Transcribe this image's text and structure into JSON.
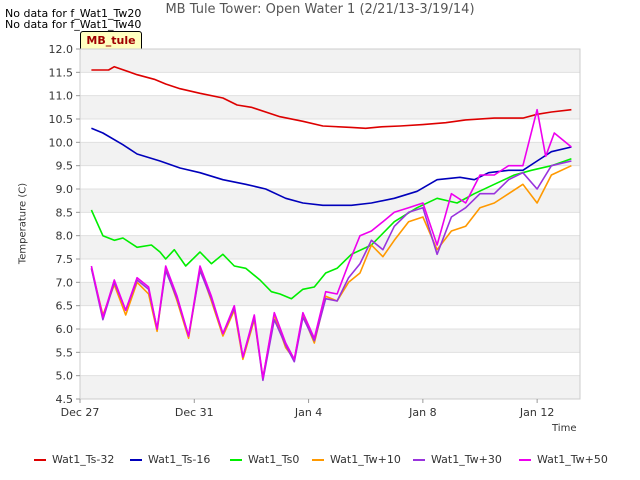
{
  "nodata": [
    "No data for f_Wat1_Tw20",
    "No data for f_Wat1_Tw40"
  ],
  "badge": "MB_tule",
  "chart_data": {
    "type": "line",
    "title": "MB Tule Tower: Open Water 1 (2/21/13-3/19/14)",
    "xlabel": "Time",
    "ylabel": "Temperature (C)",
    "ylim": [
      4.5,
      12.0
    ],
    "yticks": [
      "4.5",
      "5.0",
      "5.5",
      "6.0",
      "6.5",
      "7.0",
      "7.5",
      "8.0",
      "8.5",
      "9.0",
      "9.5",
      "10.0",
      "10.5",
      "11.0",
      "11.5",
      "12.0"
    ],
    "xlim_days": [
      0,
      17.5
    ],
    "xticks": [
      {
        "label": "Dec 27",
        "day": 0
      },
      {
        "label": "Dec 31",
        "day": 4
      },
      {
        "label": "Jan 4",
        "day": 8
      },
      {
        "label": "Jan 8",
        "day": 12
      },
      {
        "label": "Jan 12",
        "day": 16
      }
    ],
    "grid": true,
    "legend_position": "bottom",
    "series": [
      {
        "name": "Wat1_Ts-32",
        "color": "#dd0000",
        "points": [
          [
            0.4,
            11.55
          ],
          [
            1.0,
            11.55
          ],
          [
            1.2,
            11.62
          ],
          [
            2.0,
            11.45
          ],
          [
            2.6,
            11.35
          ],
          [
            3.0,
            11.25
          ],
          [
            3.5,
            11.15
          ],
          [
            4.2,
            11.05
          ],
          [
            5.0,
            10.95
          ],
          [
            5.5,
            10.8
          ],
          [
            6.0,
            10.75
          ],
          [
            7.0,
            10.55
          ],
          [
            7.8,
            10.45
          ],
          [
            8.5,
            10.35
          ],
          [
            9.5,
            10.32
          ],
          [
            10.0,
            10.3
          ],
          [
            10.5,
            10.33
          ],
          [
            11.2,
            10.35
          ],
          [
            12.0,
            10.38
          ],
          [
            12.8,
            10.42
          ],
          [
            13.5,
            10.48
          ],
          [
            14.5,
            10.52
          ],
          [
            15.5,
            10.52
          ],
          [
            16.0,
            10.6
          ],
          [
            16.5,
            10.65
          ],
          [
            17.2,
            10.7
          ]
        ]
      },
      {
        "name": "Wat1_Ts-16",
        "color": "#0000bb",
        "points": [
          [
            0.4,
            10.3
          ],
          [
            0.8,
            10.2
          ],
          [
            1.5,
            9.95
          ],
          [
            2.0,
            9.75
          ],
          [
            2.8,
            9.6
          ],
          [
            3.5,
            9.45
          ],
          [
            4.2,
            9.35
          ],
          [
            5.0,
            9.2
          ],
          [
            5.8,
            9.1
          ],
          [
            6.5,
            9.0
          ],
          [
            7.2,
            8.8
          ],
          [
            7.8,
            8.7
          ],
          [
            8.5,
            8.65
          ],
          [
            9.5,
            8.65
          ],
          [
            10.2,
            8.7
          ],
          [
            11.0,
            8.8
          ],
          [
            11.8,
            8.95
          ],
          [
            12.5,
            9.2
          ],
          [
            13.3,
            9.25
          ],
          [
            13.8,
            9.2
          ],
          [
            14.3,
            9.35
          ],
          [
            15.0,
            9.4
          ],
          [
            15.5,
            9.4
          ],
          [
            16.0,
            9.6
          ],
          [
            16.5,
            9.8
          ],
          [
            17.2,
            9.9
          ]
        ]
      },
      {
        "name": "Wat1_Ts0",
        "color": "#00ee00",
        "points": [
          [
            0.4,
            8.55
          ],
          [
            0.8,
            8.0
          ],
          [
            1.2,
            7.9
          ],
          [
            1.5,
            7.95
          ],
          [
            2.0,
            7.75
          ],
          [
            2.5,
            7.8
          ],
          [
            2.8,
            7.65
          ],
          [
            3.0,
            7.5
          ],
          [
            3.3,
            7.7
          ],
          [
            3.7,
            7.35
          ],
          [
            4.2,
            7.65
          ],
          [
            4.6,
            7.4
          ],
          [
            5.0,
            7.6
          ],
          [
            5.4,
            7.35
          ],
          [
            5.8,
            7.3
          ],
          [
            6.3,
            7.05
          ],
          [
            6.7,
            6.8
          ],
          [
            7.0,
            6.75
          ],
          [
            7.4,
            6.65
          ],
          [
            7.8,
            6.85
          ],
          [
            8.2,
            6.9
          ],
          [
            8.6,
            7.2
          ],
          [
            9.0,
            7.3
          ],
          [
            9.5,
            7.6
          ],
          [
            10.2,
            7.8
          ],
          [
            11.0,
            8.3
          ],
          [
            11.8,
            8.6
          ],
          [
            12.5,
            8.8
          ],
          [
            13.2,
            8.7
          ],
          [
            13.8,
            8.9
          ],
          [
            14.5,
            9.1
          ],
          [
            15.2,
            9.3
          ],
          [
            15.8,
            9.4
          ],
          [
            16.5,
            9.5
          ],
          [
            17.2,
            9.65
          ]
        ]
      },
      {
        "name": "Wat1_Tw+10",
        "color": "#ff9900",
        "points": [
          [
            0.4,
            7.3
          ],
          [
            0.8,
            6.3
          ],
          [
            1.2,
            6.95
          ],
          [
            1.6,
            6.3
          ],
          [
            2.0,
            7.0
          ],
          [
            2.4,
            6.75
          ],
          [
            2.7,
            5.95
          ],
          [
            3.0,
            7.3
          ],
          [
            3.4,
            6.6
          ],
          [
            3.8,
            5.8
          ],
          [
            4.2,
            7.3
          ],
          [
            4.6,
            6.6
          ],
          [
            5.0,
            5.85
          ],
          [
            5.4,
            6.4
          ],
          [
            5.7,
            5.35
          ],
          [
            6.1,
            6.2
          ],
          [
            6.4,
            4.95
          ],
          [
            6.8,
            6.3
          ],
          [
            7.2,
            5.6
          ],
          [
            7.5,
            5.35
          ],
          [
            7.8,
            6.3
          ],
          [
            8.2,
            5.7
          ],
          [
            8.6,
            6.7
          ],
          [
            9.0,
            6.6
          ],
          [
            9.4,
            7.0
          ],
          [
            9.8,
            7.2
          ],
          [
            10.2,
            7.8
          ],
          [
            10.6,
            7.55
          ],
          [
            11.0,
            7.9
          ],
          [
            11.5,
            8.3
          ],
          [
            12.0,
            8.4
          ],
          [
            12.5,
            7.7
          ],
          [
            13.0,
            8.1
          ],
          [
            13.5,
            8.2
          ],
          [
            14.0,
            8.6
          ],
          [
            14.5,
            8.7
          ],
          [
            15.0,
            8.9
          ],
          [
            15.5,
            9.1
          ],
          [
            16.0,
            8.7
          ],
          [
            16.5,
            9.3
          ],
          [
            17.2,
            9.5
          ]
        ]
      },
      {
        "name": "Wat1_Tw+30",
        "color": "#9933dd",
        "points": [
          [
            0.4,
            7.3
          ],
          [
            0.8,
            6.2
          ],
          [
            1.2,
            7.0
          ],
          [
            1.6,
            6.4
          ],
          [
            2.0,
            7.05
          ],
          [
            2.4,
            6.85
          ],
          [
            2.7,
            6.0
          ],
          [
            3.0,
            7.25
          ],
          [
            3.4,
            6.65
          ],
          [
            3.8,
            5.85
          ],
          [
            4.2,
            7.25
          ],
          [
            4.6,
            6.65
          ],
          [
            5.0,
            5.9
          ],
          [
            5.4,
            6.45
          ],
          [
            5.7,
            5.4
          ],
          [
            6.1,
            6.25
          ],
          [
            6.4,
            4.9
          ],
          [
            6.8,
            6.2
          ],
          [
            7.2,
            5.65
          ],
          [
            7.5,
            5.3
          ],
          [
            7.8,
            6.25
          ],
          [
            8.2,
            5.75
          ],
          [
            8.6,
            6.65
          ],
          [
            9.0,
            6.6
          ],
          [
            9.4,
            7.1
          ],
          [
            9.8,
            7.4
          ],
          [
            10.2,
            7.9
          ],
          [
            10.6,
            7.7
          ],
          [
            11.0,
            8.2
          ],
          [
            11.5,
            8.5
          ],
          [
            12.0,
            8.6
          ],
          [
            12.5,
            7.6
          ],
          [
            13.0,
            8.4
          ],
          [
            13.5,
            8.6
          ],
          [
            14.0,
            8.9
          ],
          [
            14.5,
            8.9
          ],
          [
            15.0,
            9.2
          ],
          [
            15.5,
            9.35
          ],
          [
            16.0,
            9.0
          ],
          [
            16.5,
            9.5
          ],
          [
            17.2,
            9.6
          ]
        ]
      },
      {
        "name": "Wat1_Tw+50",
        "color": "#ee00ee",
        "points": [
          [
            0.4,
            7.35
          ],
          [
            0.8,
            6.25
          ],
          [
            1.2,
            7.05
          ],
          [
            1.6,
            6.4
          ],
          [
            2.0,
            7.1
          ],
          [
            2.4,
            6.9
          ],
          [
            2.7,
            6.0
          ],
          [
            3.0,
            7.35
          ],
          [
            3.4,
            6.7
          ],
          [
            3.8,
            5.85
          ],
          [
            4.2,
            7.35
          ],
          [
            4.6,
            6.7
          ],
          [
            5.0,
            5.9
          ],
          [
            5.4,
            6.5
          ],
          [
            5.7,
            5.4
          ],
          [
            6.1,
            6.3
          ],
          [
            6.4,
            4.95
          ],
          [
            6.8,
            6.35
          ],
          [
            7.2,
            5.7
          ],
          [
            7.5,
            5.35
          ],
          [
            7.8,
            6.35
          ],
          [
            8.2,
            5.8
          ],
          [
            8.6,
            6.8
          ],
          [
            9.0,
            6.75
          ],
          [
            9.4,
            7.4
          ],
          [
            9.8,
            8.0
          ],
          [
            10.2,
            8.1
          ],
          [
            10.6,
            8.3
          ],
          [
            11.0,
            8.5
          ],
          [
            11.5,
            8.6
          ],
          [
            12.0,
            8.7
          ],
          [
            12.5,
            7.8
          ],
          [
            13.0,
            8.9
          ],
          [
            13.5,
            8.7
          ],
          [
            14.0,
            9.3
          ],
          [
            14.5,
            9.3
          ],
          [
            15.0,
            9.5
          ],
          [
            15.5,
            9.5
          ],
          [
            16.0,
            10.7
          ],
          [
            16.3,
            9.7
          ],
          [
            16.6,
            10.2
          ],
          [
            17.2,
            9.9
          ]
        ]
      }
    ]
  }
}
